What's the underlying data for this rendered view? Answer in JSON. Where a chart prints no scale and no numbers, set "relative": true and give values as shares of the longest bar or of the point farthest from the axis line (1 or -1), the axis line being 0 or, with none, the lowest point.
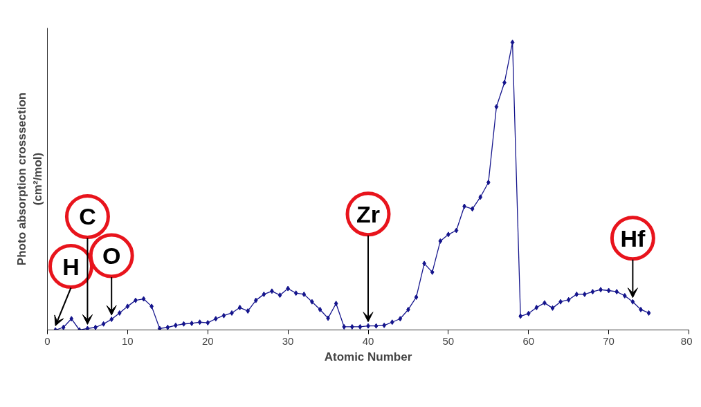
{
  "chart_data": {
    "type": "line",
    "relative": true,
    "xlabel": "Atomic Number",
    "ylabel": "Photo absorption crosssection\n(cm²/mol)",
    "xlim": [
      0,
      80
    ],
    "xticks": [
      0,
      10,
      20,
      30,
      40,
      50,
      60,
      70,
      80
    ],
    "grid": false,
    "marker": "diamond",
    "line_style": "solid",
    "x": [
      1,
      2,
      3,
      4,
      5,
      6,
      7,
      8,
      9,
      10,
      11,
      12,
      13,
      14,
      15,
      16,
      17,
      18,
      19,
      20,
      21,
      22,
      23,
      24,
      25,
      26,
      27,
      28,
      29,
      30,
      31,
      32,
      33,
      34,
      35,
      36,
      37,
      38,
      39,
      40,
      41,
      42,
      43,
      44,
      45,
      46,
      47,
      48,
      49,
      50,
      51,
      52,
      53,
      54,
      55,
      56,
      57,
      58,
      59,
      60,
      61,
      62,
      63,
      64,
      65,
      66,
      67,
      68,
      69,
      70,
      71,
      72,
      73,
      74,
      75
    ],
    "series": [
      {
        "color": "#14148c",
        "values": [
          0.0,
          0.009,
          0.039,
          0.0,
          0.005,
          0.009,
          0.021,
          0.037,
          0.059,
          0.082,
          0.103,
          0.108,
          0.082,
          0.005,
          0.009,
          0.016,
          0.021,
          0.023,
          0.027,
          0.025,
          0.039,
          0.05,
          0.059,
          0.078,
          0.066,
          0.103,
          0.124,
          0.135,
          0.121,
          0.144,
          0.128,
          0.124,
          0.098,
          0.071,
          0.041,
          0.092,
          0.011,
          0.011,
          0.011,
          0.014,
          0.014,
          0.016,
          0.027,
          0.039,
          0.071,
          0.114,
          0.231,
          0.201,
          0.309,
          0.332,
          0.346,
          0.43,
          0.421,
          0.462,
          0.513,
          0.776,
          0.86,
          1.0,
          0.048,
          0.057,
          0.078,
          0.094,
          0.076,
          0.098,
          0.105,
          0.124,
          0.124,
          0.133,
          0.14,
          0.137,
          0.133,
          0.119,
          0.098,
          0.071,
          0.059
        ]
      }
    ],
    "annotations": [
      {
        "text": "H",
        "x": 1,
        "y": 0.0
      },
      {
        "text": "C",
        "x": 5,
        "y": 0.005
      },
      {
        "text": "O",
        "x": 8,
        "y": 0.037
      },
      {
        "text": "Zr",
        "x": 40,
        "y": 0.014
      },
      {
        "text": "Hf",
        "x": 73,
        "y": 0.098
      }
    ]
  }
}
